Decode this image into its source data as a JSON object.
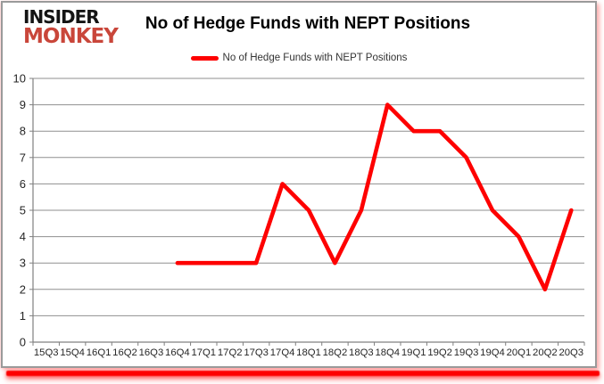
{
  "logo": {
    "line1": "INSIDER",
    "line2": "MONKEY"
  },
  "header": {
    "title": "No of Hedge Funds with NEPT Positions"
  },
  "legend": {
    "label": "No of Hedge Funds with NEPT Positions"
  },
  "colors": {
    "series": "#fe0000",
    "grid": "#8f8f8f",
    "axis": "#808080",
    "tick_text": "#262626",
    "logo_black": "#141414",
    "logo_red": "#c9463a",
    "frame_border": "#9a9a9a"
  },
  "chart_data": {
    "type": "line",
    "title": "No of Hedge Funds with NEPT Positions",
    "categories": [
      "15Q3",
      "15Q4",
      "16Q1",
      "16Q2",
      "16Q3",
      "16Q4",
      "17Q1",
      "17Q2",
      "17Q3",
      "17Q4",
      "18Q1",
      "18Q2",
      "18Q3",
      "18Q4",
      "19Q1",
      "19Q2",
      "19Q3",
      "19Q4",
      "20Q1",
      "20Q2",
      "20Q3"
    ],
    "series": [
      {
        "name": "No of Hedge Funds with NEPT Positions",
        "values": [
          null,
          null,
          null,
          null,
          null,
          3,
          3,
          3,
          3,
          6,
          5,
          3,
          5,
          9,
          8,
          8,
          7,
          5,
          4,
          2,
          5
        ]
      }
    ],
    "ylim": [
      0,
      10
    ],
    "ytick_interval": 1,
    "yticks": [
      0,
      1,
      2,
      3,
      4,
      5,
      6,
      7,
      8,
      9,
      10
    ],
    "grid": "horizontal",
    "legend_position": "top",
    "xlabel": "",
    "ylabel": ""
  }
}
